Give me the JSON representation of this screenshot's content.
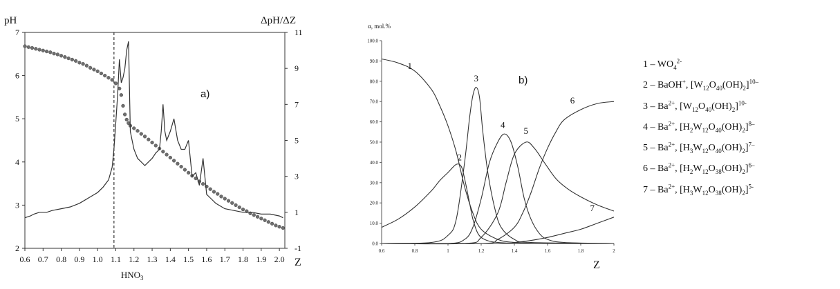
{
  "chart_data": [
    {
      "id": "a",
      "type": "line",
      "panel_label": "a)",
      "xlabel": "Z",
      "ylabel_left": "pH",
      "ylabel_right": "ΔpH/ΔZ",
      "xlim": [
        0.6,
        2.03
      ],
      "ylim_left": [
        2,
        7
      ],
      "ylim_right": [
        -1,
        11
      ],
      "xticks": [
        "0.6",
        "0.7",
        "0.8",
        "0.9",
        "1.0",
        "1.1",
        "1.2",
        "1.3",
        "1.4",
        "1.5",
        "1.6",
        "1.7",
        "1.8",
        "1.9",
        "2.0"
      ],
      "yticks_left": [
        "2",
        "3",
        "4",
        "5",
        "6",
        "7"
      ],
      "yticks_right": [
        "-1",
        "1",
        "3",
        "5",
        "7",
        "9",
        "11"
      ],
      "vline": {
        "x": 1.09,
        "label": "HNO3",
        "style": "dashed"
      },
      "series": [
        {
          "axis": "left",
          "style": "markers",
          "points": [
            [
              0.6,
              6.68
            ],
            [
              0.62,
              6.66
            ],
            [
              0.64,
              6.64
            ],
            [
              0.66,
              6.62
            ],
            [
              0.68,
              6.6
            ],
            [
              0.7,
              6.58
            ],
            [
              0.72,
              6.56
            ],
            [
              0.74,
              6.54
            ],
            [
              0.76,
              6.51
            ],
            [
              0.78,
              6.49
            ],
            [
              0.8,
              6.46
            ],
            [
              0.82,
              6.43
            ],
            [
              0.84,
              6.4
            ],
            [
              0.86,
              6.37
            ],
            [
              0.88,
              6.34
            ],
            [
              0.9,
              6.3
            ],
            [
              0.92,
              6.27
            ],
            [
              0.94,
              6.23
            ],
            [
              0.96,
              6.18
            ],
            [
              0.98,
              6.14
            ],
            [
              1.0,
              6.1
            ],
            [
              1.02,
              6.05
            ],
            [
              1.04,
              6.0
            ],
            [
              1.06,
              5.95
            ],
            [
              1.08,
              5.9
            ],
            [
              1.1,
              5.82
            ],
            [
              1.12,
              5.7
            ],
            [
              1.13,
              5.55
            ],
            [
              1.14,
              5.3
            ],
            [
              1.15,
              5.1
            ],
            [
              1.16,
              4.98
            ],
            [
              1.17,
              4.9
            ],
            [
              1.18,
              4.84
            ],
            [
              1.2,
              4.78
            ],
            [
              1.22,
              4.72
            ],
            [
              1.24,
              4.65
            ],
            [
              1.26,
              4.59
            ],
            [
              1.28,
              4.52
            ],
            [
              1.3,
              4.45
            ],
            [
              1.32,
              4.38
            ],
            [
              1.34,
              4.31
            ],
            [
              1.36,
              4.24
            ],
            [
              1.38,
              4.17
            ],
            [
              1.4,
              4.1
            ],
            [
              1.42,
              4.03
            ],
            [
              1.44,
              3.96
            ],
            [
              1.46,
              3.89
            ],
            [
              1.48,
              3.82
            ],
            [
              1.5,
              3.75
            ],
            [
              1.52,
              3.68
            ],
            [
              1.54,
              3.62
            ],
            [
              1.56,
              3.55
            ],
            [
              1.58,
              3.49
            ],
            [
              1.6,
              3.43
            ],
            [
              1.62,
              3.37
            ],
            [
              1.64,
              3.31
            ],
            [
              1.66,
              3.26
            ],
            [
              1.68,
              3.2
            ],
            [
              1.7,
              3.15
            ],
            [
              1.72,
              3.1
            ],
            [
              1.74,
              3.05
            ],
            [
              1.76,
              3.0
            ],
            [
              1.78,
              2.95
            ],
            [
              1.8,
              2.9
            ],
            [
              1.82,
              2.86
            ],
            [
              1.84,
              2.81
            ],
            [
              1.86,
              2.77
            ],
            [
              1.88,
              2.73
            ],
            [
              1.9,
              2.69
            ],
            [
              1.92,
              2.65
            ],
            [
              1.94,
              2.61
            ],
            [
              1.96,
              2.57
            ],
            [
              1.98,
              2.53
            ],
            [
              2.0,
              2.5
            ],
            [
              2.02,
              2.47
            ]
          ]
        },
        {
          "axis": "right",
          "style": "line",
          "points": [
            [
              0.6,
              0.7
            ],
            [
              0.63,
              0.8
            ],
            [
              0.65,
              0.9
            ],
            [
              0.68,
              1.0
            ],
            [
              0.72,
              1.0
            ],
            [
              0.75,
              1.1
            ],
            [
              0.8,
              1.2
            ],
            [
              0.85,
              1.3
            ],
            [
              0.9,
              1.5
            ],
            [
              0.95,
              1.8
            ],
            [
              1.0,
              2.1
            ],
            [
              1.03,
              2.4
            ],
            [
              1.06,
              2.8
            ],
            [
              1.08,
              3.5
            ],
            [
              1.09,
              4.5
            ],
            [
              1.1,
              6.0
            ],
            [
              1.11,
              7.5
            ],
            [
              1.12,
              9.5
            ],
            [
              1.13,
              8.2
            ],
            [
              1.14,
              8.5
            ],
            [
              1.15,
              9.0
            ],
            [
              1.16,
              10.0
            ],
            [
              1.17,
              10.5
            ],
            [
              1.18,
              5.5
            ],
            [
              1.19,
              5.0
            ],
            [
              1.2,
              4.5
            ],
            [
              1.22,
              4.0
            ],
            [
              1.24,
              3.8
            ],
            [
              1.26,
              3.6
            ],
            [
              1.28,
              3.8
            ],
            [
              1.3,
              4.0
            ],
            [
              1.32,
              4.3
            ],
            [
              1.34,
              4.5
            ],
            [
              1.35,
              5.5
            ],
            [
              1.36,
              7.0
            ],
            [
              1.37,
              5.5
            ],
            [
              1.38,
              5.0
            ],
            [
              1.4,
              5.5
            ],
            [
              1.42,
              6.2
            ],
            [
              1.44,
              5.0
            ],
            [
              1.46,
              4.5
            ],
            [
              1.48,
              4.5
            ],
            [
              1.5,
              5.0
            ],
            [
              1.52,
              3.0
            ],
            [
              1.54,
              3.2
            ],
            [
              1.56,
              2.5
            ],
            [
              1.58,
              4.0
            ],
            [
              1.6,
              2.0
            ],
            [
              1.62,
              1.8
            ],
            [
              1.65,
              1.5
            ],
            [
              1.7,
              1.2
            ],
            [
              1.75,
              1.1
            ],
            [
              1.8,
              1.0
            ],
            [
              1.85,
              1.0
            ],
            [
              1.9,
              0.9
            ],
            [
              1.95,
              0.9
            ],
            [
              2.0,
              0.8
            ],
            [
              2.02,
              0.7
            ]
          ]
        }
      ]
    },
    {
      "id": "b",
      "type": "line",
      "panel_label": "b)",
      "xlabel": "Z",
      "ylabel": "α, mol.%",
      "xlim": [
        0.6,
        2.0
      ],
      "ylim": [
        0,
        100
      ],
      "xticks": [
        "0.6",
        "0.8",
        "1",
        "1.2",
        "1.4",
        "1.6",
        "1.8",
        "2"
      ],
      "yticks": [
        "0.0",
        "10.0",
        "20.0",
        "30.0",
        "40.0",
        "50.0",
        "60.0",
        "70.0",
        "80.0",
        "90.0",
        "100.0"
      ],
      "series": [
        {
          "name": "1",
          "label_at": [
            0.77,
            86
          ],
          "points": [
            [
              0.6,
              91
            ],
            [
              0.7,
              89
            ],
            [
              0.8,
              85
            ],
            [
              0.9,
              76
            ],
            [
              0.95,
              68
            ],
            [
              1.0,
              58
            ],
            [
              1.05,
              45
            ],
            [
              1.1,
              28
            ],
            [
              1.15,
              15
            ],
            [
              1.2,
              7
            ],
            [
              1.3,
              2
            ],
            [
              1.4,
              0.5
            ],
            [
              1.6,
              0
            ],
            [
              2.0,
              0
            ]
          ]
        },
        {
          "name": "2",
          "label_at": [
            1.07,
            41
          ],
          "points": [
            [
              0.6,
              8
            ],
            [
              0.7,
              12
            ],
            [
              0.8,
              18
            ],
            [
              0.9,
              26
            ],
            [
              0.95,
              31
            ],
            [
              1.0,
              35
            ],
            [
              1.05,
              39
            ],
            [
              1.08,
              38
            ],
            [
              1.1,
              32
            ],
            [
              1.13,
              20
            ],
            [
              1.15,
              12
            ],
            [
              1.18,
              5
            ],
            [
              1.22,
              2
            ],
            [
              1.3,
              0.5
            ],
            [
              1.5,
              0
            ],
            [
              2.0,
              0
            ]
          ]
        },
        {
          "name": "3",
          "label_at": [
            1.17,
            80
          ],
          "points": [
            [
              0.6,
              0
            ],
            [
              0.9,
              0.5
            ],
            [
              1.0,
              4
            ],
            [
              1.05,
              12
            ],
            [
              1.1,
              40
            ],
            [
              1.13,
              62
            ],
            [
              1.15,
              73
            ],
            [
              1.17,
              77
            ],
            [
              1.19,
              72
            ],
            [
              1.21,
              55
            ],
            [
              1.24,
              35
            ],
            [
              1.28,
              18
            ],
            [
              1.32,
              8
            ],
            [
              1.4,
              2
            ],
            [
              1.5,
              0.5
            ],
            [
              2.0,
              0
            ]
          ]
        },
        {
          "name": "4",
          "label_at": [
            1.33,
            57
          ],
          "points": [
            [
              0.6,
              0
            ],
            [
              1.0,
              0
            ],
            [
              1.1,
              2
            ],
            [
              1.15,
              8
            ],
            [
              1.2,
              22
            ],
            [
              1.25,
              40
            ],
            [
              1.3,
              50
            ],
            [
              1.34,
              54
            ],
            [
              1.38,
              50
            ],
            [
              1.42,
              38
            ],
            [
              1.46,
              22
            ],
            [
              1.5,
              12
            ],
            [
              1.55,
              5
            ],
            [
              1.6,
              2
            ],
            [
              1.7,
              0.5
            ],
            [
              2.0,
              0
            ]
          ]
        },
        {
          "name": "5",
          "label_at": [
            1.47,
            54
          ],
          "points": [
            [
              0.6,
              0
            ],
            [
              1.1,
              0
            ],
            [
              1.2,
              3
            ],
            [
              1.3,
              15
            ],
            [
              1.35,
              30
            ],
            [
              1.4,
              44
            ],
            [
              1.47,
              50
            ],
            [
              1.52,
              47
            ],
            [
              1.58,
              40
            ],
            [
              1.65,
              32
            ],
            [
              1.72,
              27
            ],
            [
              1.8,
              23
            ],
            [
              1.9,
              19
            ],
            [
              2.0,
              16
            ]
          ]
        },
        {
          "name": "6",
          "label_at": [
            1.75,
            69
          ],
          "points": [
            [
              0.6,
              0
            ],
            [
              1.2,
              0
            ],
            [
              1.3,
              2
            ],
            [
              1.4,
              8
            ],
            [
              1.45,
              15
            ],
            [
              1.5,
              25
            ],
            [
              1.55,
              37
            ],
            [
              1.6,
              47
            ],
            [
              1.65,
              55
            ],
            [
              1.7,
              61
            ],
            [
              1.8,
              66
            ],
            [
              1.9,
              69
            ],
            [
              2.0,
              70
            ]
          ]
        },
        {
          "name": "7",
          "label_at": [
            1.87,
            16
          ],
          "points": [
            [
              0.6,
              0
            ],
            [
              1.3,
              0
            ],
            [
              1.4,
              0.5
            ],
            [
              1.5,
              1.5
            ],
            [
              1.6,
              3
            ],
            [
              1.7,
              5
            ],
            [
              1.8,
              7
            ],
            [
              1.9,
              10
            ],
            [
              2.0,
              13
            ]
          ]
        }
      ]
    }
  ],
  "legend": [
    {
      "num": "1",
      "ion": "",
      "formula": "WO4 2-"
    },
    {
      "num": "2",
      "ion": "BaOH+, ",
      "formula": "[W12O40(OH)2]10–"
    },
    {
      "num": "3",
      "ion": "Ba2+, ",
      "formula": "[W12O40(OH)2]10-"
    },
    {
      "num": "4",
      "ion": "Ba2+, ",
      "formula": "[H2W12O40(OH)2]8–"
    },
    {
      "num": "5",
      "ion": "Ba2+, ",
      "formula": "[H3W12O40(OH)2]7–"
    },
    {
      "num": "6",
      "ion": "Ba2+, ",
      "formula": "[H2W12O38(OH)2]6–"
    },
    {
      "num": "7",
      "ion": "Ba2+, ",
      "formula": "[H3W12O38(OH)2]5-"
    }
  ]
}
